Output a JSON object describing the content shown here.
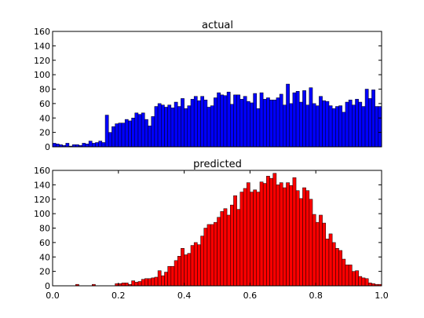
{
  "chart_data": [
    {
      "type": "bar",
      "title": "actual",
      "color": "#0000ff",
      "xlabel": "",
      "ylabel": "",
      "xlim": [
        0.0,
        1.0
      ],
      "ylim": [
        0,
        160
      ],
      "x_ticks": [],
      "y_ticks": [
        0,
        20,
        40,
        60,
        80,
        100,
        120,
        140,
        160
      ],
      "y_tick_labels": [
        "0",
        "20",
        "40",
        "60",
        "80",
        "100",
        "120",
        "140",
        "160"
      ],
      "bins": 100,
      "values": [
        5,
        4,
        3,
        2,
        5,
        1,
        3,
        3,
        2,
        5,
        4,
        8,
        5,
        6,
        8,
        6,
        44,
        20,
        28,
        32,
        33,
        33,
        38,
        36,
        40,
        47,
        45,
        47,
        38,
        29,
        42,
        56,
        60,
        58,
        55,
        58,
        54,
        62,
        56,
        67,
        53,
        57,
        66,
        70,
        64,
        70,
        65,
        55,
        57,
        68,
        75,
        72,
        71,
        76,
        59,
        72,
        72,
        66,
        70,
        63,
        61,
        74,
        53,
        75,
        66,
        68,
        65,
        65,
        68,
        73,
        58,
        87,
        60,
        75,
        77,
        62,
        78,
        58,
        82,
        60,
        57,
        70,
        64,
        63,
        57,
        53,
        56,
        57,
        48,
        62,
        65,
        58,
        66,
        62,
        56,
        80,
        67,
        79,
        56,
        56
      ]
    },
    {
      "type": "bar",
      "title": "predicted",
      "color": "#ff0000",
      "xlabel": "",
      "ylabel": "",
      "xlim": [
        0.0,
        1.0
      ],
      "ylim": [
        0,
        160
      ],
      "x_ticks": [
        0.0,
        0.2,
        0.4,
        0.6,
        0.8,
        1.0
      ],
      "x_tick_labels": [
        "0.0",
        "0.2",
        "0.4",
        "0.6",
        "0.8",
        "1.0"
      ],
      "y_ticks": [
        0,
        20,
        40,
        60,
        80,
        100,
        120,
        140,
        160
      ],
      "y_tick_labels": [
        "0",
        "20",
        "40",
        "60",
        "80",
        "100",
        "120",
        "140",
        "160"
      ],
      "bins": 100,
      "values": [
        0,
        0,
        0,
        0,
        0,
        0,
        0,
        2,
        0,
        0,
        0,
        0,
        2,
        0,
        0,
        0,
        0,
        0,
        0,
        3,
        3,
        4,
        4,
        2,
        7,
        5,
        6,
        9,
        10,
        10,
        11,
        12,
        21,
        14,
        19,
        27,
        27,
        35,
        41,
        52,
        43,
        45,
        56,
        60,
        57,
        69,
        80,
        85,
        85,
        88,
        95,
        103,
        107,
        98,
        112,
        125,
        106,
        130,
        135,
        143,
        130,
        133,
        130,
        144,
        142,
        152,
        149,
        156,
        140,
        143,
        136,
        143,
        139,
        150,
        132,
        121,
        136,
        132,
        120,
        99,
        88,
        98,
        87,
        65,
        72,
        60,
        52,
        49,
        37,
        29,
        29,
        20,
        21,
        13,
        11,
        10,
        4,
        3,
        2,
        2
      ]
    }
  ]
}
